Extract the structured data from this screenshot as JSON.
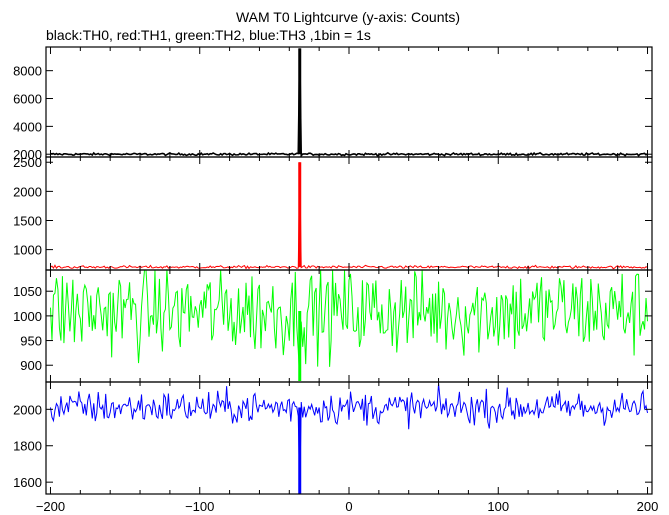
{
  "chart_data": {
    "type": "line",
    "title": "WAM T0 Lightcurve (y-axis: Counts)",
    "subtitle": "black:TH0, red:TH1, green:TH2, blue:TH3 ,1bin = 1s",
    "xlabel": "",
    "ylabel": "",
    "xlim": [
      -203,
      203
    ],
    "x_ticks": [
      -200,
      -100,
      0,
      100,
      200
    ],
    "x_tick_labels": [
      "−200",
      "−100",
      "0",
      "100",
      "200"
    ],
    "bin_size_s": 1,
    "grid": false,
    "panels": [
      {
        "name": "TH0",
        "color": "#000000",
        "ylim": [
          1800,
          9700
        ],
        "y_ticks": [
          2000,
          4000,
          6000,
          8000
        ],
        "y_tick_labels": [
          "2000",
          "4000",
          "6000",
          "8000"
        ],
        "baseline": 2000,
        "noise": 40,
        "spike": {
          "x": -33,
          "peak": 9600
        }
      },
      {
        "name": "TH1",
        "color": "#ff0000",
        "ylim": [
          650,
          2590
        ],
        "y_ticks": [
          1000,
          1500,
          2000,
          2500
        ],
        "y_tick_labels": [
          "1000",
          "1500",
          "2000",
          "2500"
        ],
        "baseline": 700,
        "noise": 12,
        "spike": {
          "x": -33,
          "peak": 2500
        }
      },
      {
        "name": "TH2",
        "color": "#00ff00",
        "ylim": [
          866,
          1093
        ],
        "y_ticks": [
          900,
          950,
          1000,
          1050
        ],
        "y_tick_labels": [
          "900",
          "950",
          "1000",
          "1050"
        ],
        "baseline": 1010,
        "noise": 45,
        "spike": {
          "x": -33,
          "peak": 868
        }
      },
      {
        "name": "TH3",
        "color": "#0000ff",
        "ylim": [
          1535,
          2150
        ],
        "y_ticks": [
          1600,
          1800,
          2000
        ],
        "y_tick_labels": [
          "1600",
          "1800",
          "2000"
        ],
        "baseline": 2010,
        "noise": 45,
        "spike": {
          "x": -33,
          "peak": 1535
        }
      }
    ]
  }
}
